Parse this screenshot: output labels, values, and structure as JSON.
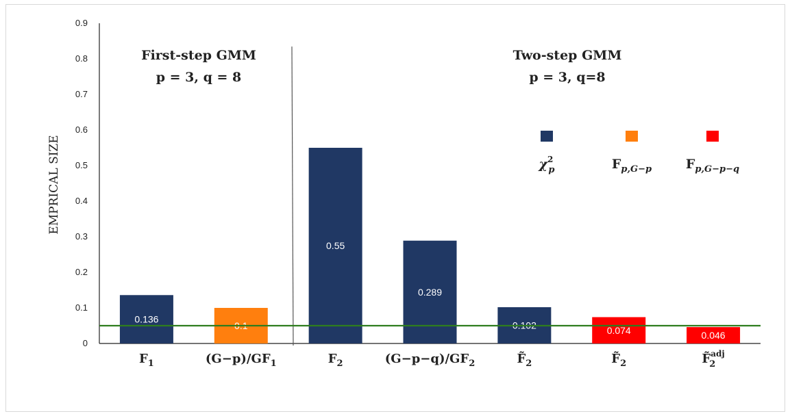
{
  "chart_data": {
    "type": "bar",
    "ylabel": "EMPRICAL SIZE",
    "ylim": [
      0,
      0.9
    ],
    "yticks": [
      "0",
      "0.1",
      "0.2",
      "0.3",
      "0.4",
      "0.5",
      "0.6",
      "0.7",
      "0.8",
      "0.9"
    ],
    "grid": false,
    "reference_line": {
      "value": 0.05,
      "color": "#2e7d1e"
    },
    "panels": [
      {
        "title_line1": "First-step GMM",
        "title_line2": "p = 3, q = 8"
      },
      {
        "title_line1": "Two-step GMM",
        "title_line2": "p = 3, q=8"
      }
    ],
    "categories": [
      {
        "label": "F",
        "sub": "1",
        "sup": ""
      },
      {
        "label": "(G−p)/GF",
        "sub": "1",
        "sup": ""
      },
      {
        "label": "F",
        "sub": "2",
        "sup": ""
      },
      {
        "label": "(G−p−q)/GF",
        "sub": "2",
        "sup": ""
      },
      {
        "label": "F̃",
        "sub": "2",
        "sup": ""
      },
      {
        "label": "F̃",
        "sub": "2",
        "sup": ""
      },
      {
        "label": "F̃",
        "sub": "2",
        "sup": "adj"
      }
    ],
    "values": [
      0.136,
      0.1,
      0.55,
      0.289,
      0.102,
      0.074,
      0.046
    ],
    "value_labels": [
      "0.136",
      "0.1",
      "0.55",
      "0.289",
      "0.102",
      "0.074",
      "0.046"
    ],
    "bar_series": [
      0,
      1,
      0,
      0,
      0,
      2,
      2
    ],
    "legend_placement": "upper-right",
    "legend": [
      {
        "base": "χ",
        "sub": "p",
        "sup": "2",
        "color": "#203864"
      },
      {
        "base": "F",
        "sub": "p,G−p",
        "sup": "",
        "color": "#ff7f0e"
      },
      {
        "base": "F",
        "sub": "p,G−p−q",
        "sup": "",
        "color": "#ff0000"
      }
    ]
  }
}
